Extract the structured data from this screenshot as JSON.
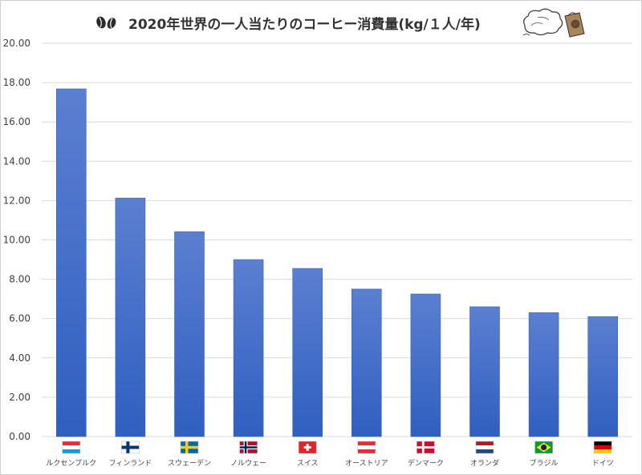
{
  "chart_data": {
    "type": "bar",
    "title": "2020年世界の一人当たりのコーヒー消費量(kg/１人/年)",
    "categories": [
      "ルクセンブルク",
      "フィンランド",
      "スウェーデン",
      "ノルウェー",
      "スイス",
      "オーストリア",
      "デンマーク",
      "オランダ",
      "ブラジル",
      "ドイツ"
    ],
    "values": [
      17.68,
      12.13,
      10.42,
      9.0,
      8.55,
      7.5,
      7.25,
      6.6,
      6.3,
      6.1
    ],
    "ylim": [
      0,
      20
    ],
    "yticks": [
      "0.00",
      "2.00",
      "4.00",
      "6.00",
      "8.00",
      "10.00",
      "12.00",
      "14.00",
      "16.00",
      "18.00",
      "20.00"
    ],
    "xlabel": "",
    "ylabel": "",
    "grid": true,
    "bar_color_top": "#5b7fd1",
    "bar_color_bottom": "#2f5fc0",
    "flags": [
      "luxembourg-flag",
      "finland-flag",
      "sweden-flag",
      "norway-flag",
      "switzerland-flag",
      "austria-flag",
      "denmark-flag",
      "netherlands-flag",
      "brazil-flag",
      "germany-flag"
    ]
  }
}
